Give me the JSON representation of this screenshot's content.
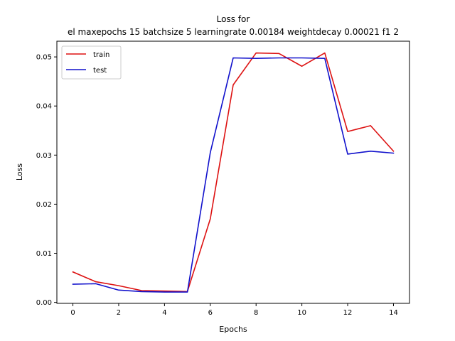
{
  "chart_data": {
    "type": "line",
    "title_line1": "Loss for",
    "title_line2": "el maxepochs 15 batchsize 5 learningrate 0.00184 weightdecay 0.00021 f1 2",
    "xlabel": "Epochs",
    "ylabel": "Loss",
    "x": [
      0,
      1,
      2,
      3,
      4,
      5,
      6,
      7,
      8,
      9,
      10,
      11,
      12,
      13,
      14
    ],
    "xlim": [
      -0.7,
      14.7
    ],
    "ylim": [
      -0.0002,
      0.0532
    ],
    "xticks": [
      0,
      2,
      4,
      6,
      8,
      10,
      12,
      14
    ],
    "yticks": [
      0.0,
      0.01,
      0.02,
      0.03,
      0.04,
      0.05
    ],
    "ytick_labels": [
      "0.00",
      "0.01",
      "0.02",
      "0.03",
      "0.04",
      "0.05"
    ],
    "grid": false,
    "legend_position": "upper-left",
    "series": [
      {
        "name": "train",
        "color": "#dd1111",
        "values": [
          0.0062,
          0.0042,
          0.0034,
          0.0024,
          0.0023,
          0.0022,
          0.017,
          0.0443,
          0.0508,
          0.0507,
          0.0481,
          0.0508,
          0.0348,
          0.036,
          0.0308
        ]
      },
      {
        "name": "test",
        "color": "#1111cc",
        "values": [
          0.0037,
          0.0038,
          0.0025,
          0.0022,
          0.0021,
          0.0021,
          0.0305,
          0.0498,
          0.0497,
          0.0498,
          0.0498,
          0.0497,
          0.0302,
          0.0308,
          0.0304
        ]
      }
    ]
  }
}
